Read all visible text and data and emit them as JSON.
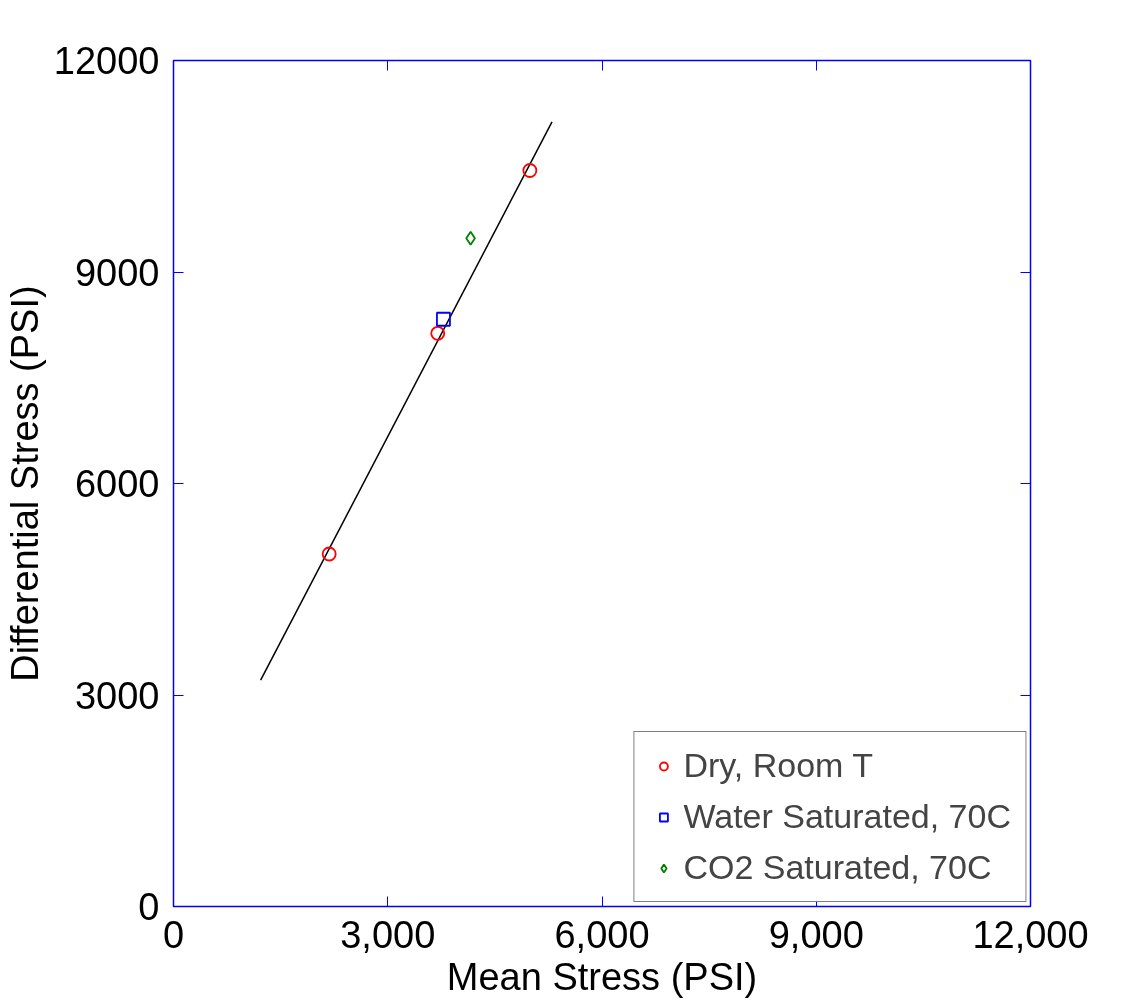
{
  "chart_data": {
    "type": "scatter",
    "xlabel": "Mean Stress (PSI)",
    "ylabel": "Differential Stress (PSI)",
    "xlim": [
      0,
      12000
    ],
    "ylim": [
      0,
      12000
    ],
    "xticks": [
      0,
      {
        "value": 3000,
        "label": "3,000"
      },
      {
        "value": 6000,
        "label": "6,000"
      },
      {
        "value": 9000,
        "label": "9,000"
      },
      {
        "value": 12000,
        "label": "12,000"
      }
    ],
    "yticks": [
      0,
      3000,
      6000,
      9000,
      12000
    ],
    "grid": false,
    "legend": "bottom right",
    "series": [
      {
        "name": "Dry, Room T",
        "color": "#ff0000",
        "marker": "circle",
        "x": [
          2180,
          3700,
          4990
        ],
        "values": [
          5000,
          8130,
          10440
        ]
      },
      {
        "name": "Water Saturated, 70C",
        "color": "#0000ff",
        "marker": "square",
        "x": [
          3780
        ],
        "values": [
          8330
        ]
      },
      {
        "name": "CO2 Saturated, 70C",
        "color": "#008000",
        "marker": "diamond",
        "x": [
          4160
        ],
        "values": [
          9480
        ]
      },
      {
        "type": "line",
        "color": "#000000",
        "x": [
          1220,
          5300
        ],
        "values": [
          3210,
          11130
        ]
      }
    ]
  }
}
